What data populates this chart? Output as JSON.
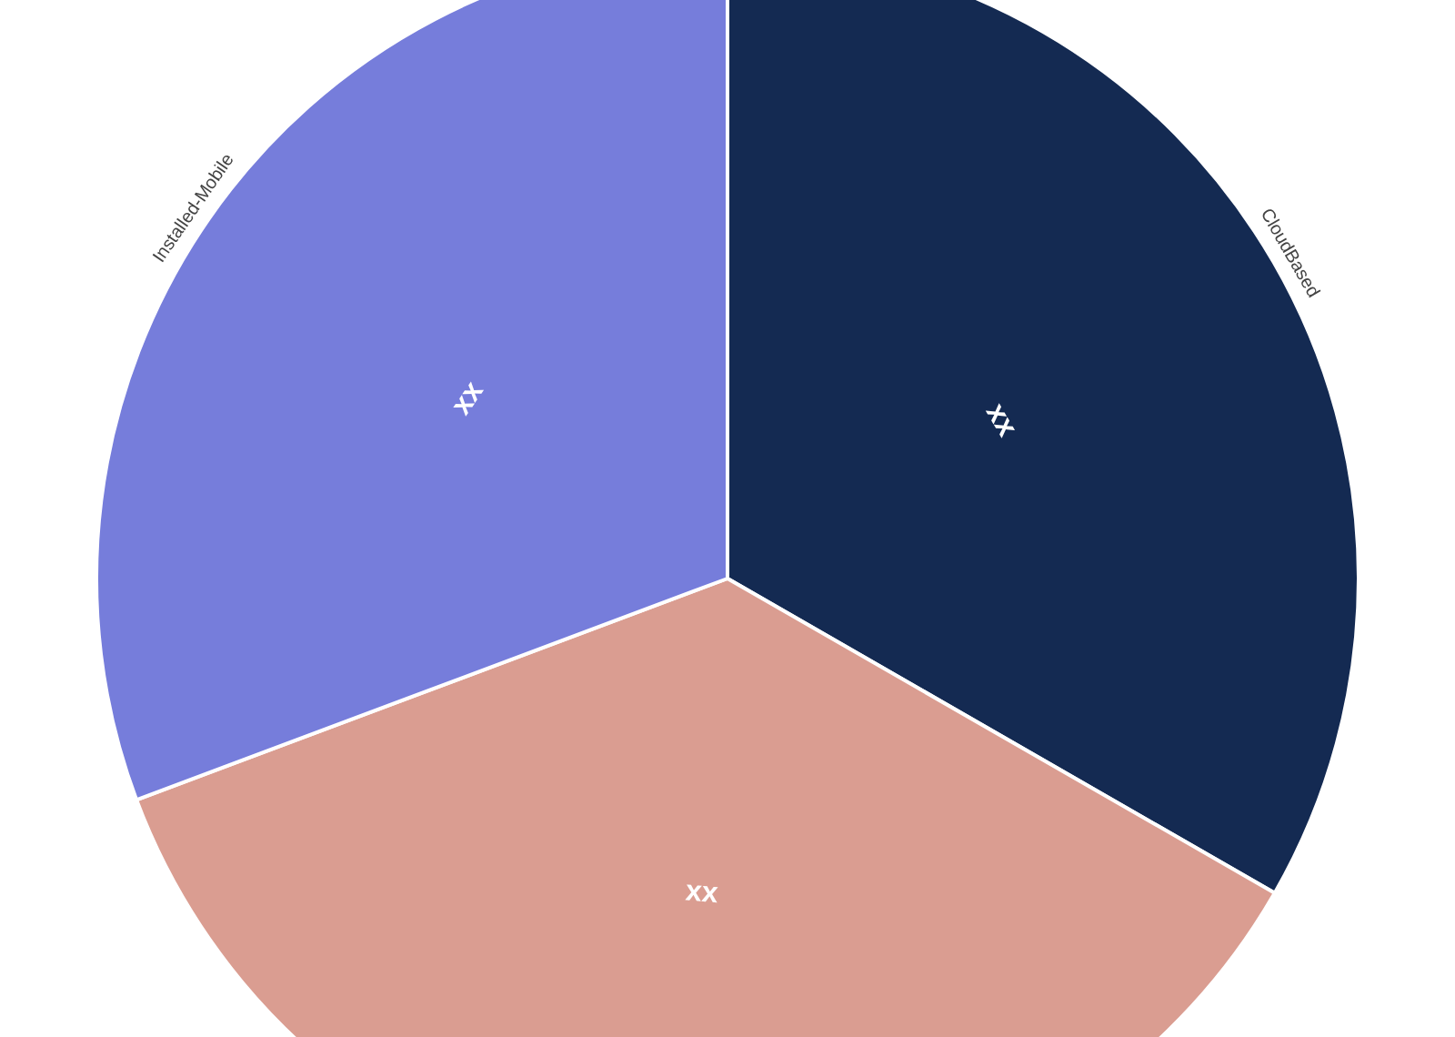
{
  "chart_data": {
    "type": "pie",
    "categories": [
      "CloudBased",
      null,
      "Installed-Mobile"
    ],
    "values": [
      33.3,
      36.0,
      30.7
    ],
    "colors": [
      "#142a52",
      "#da9d91",
      "#767ddb"
    ],
    "value_labels": [
      "xx",
      "xx",
      "xx"
    ]
  }
}
